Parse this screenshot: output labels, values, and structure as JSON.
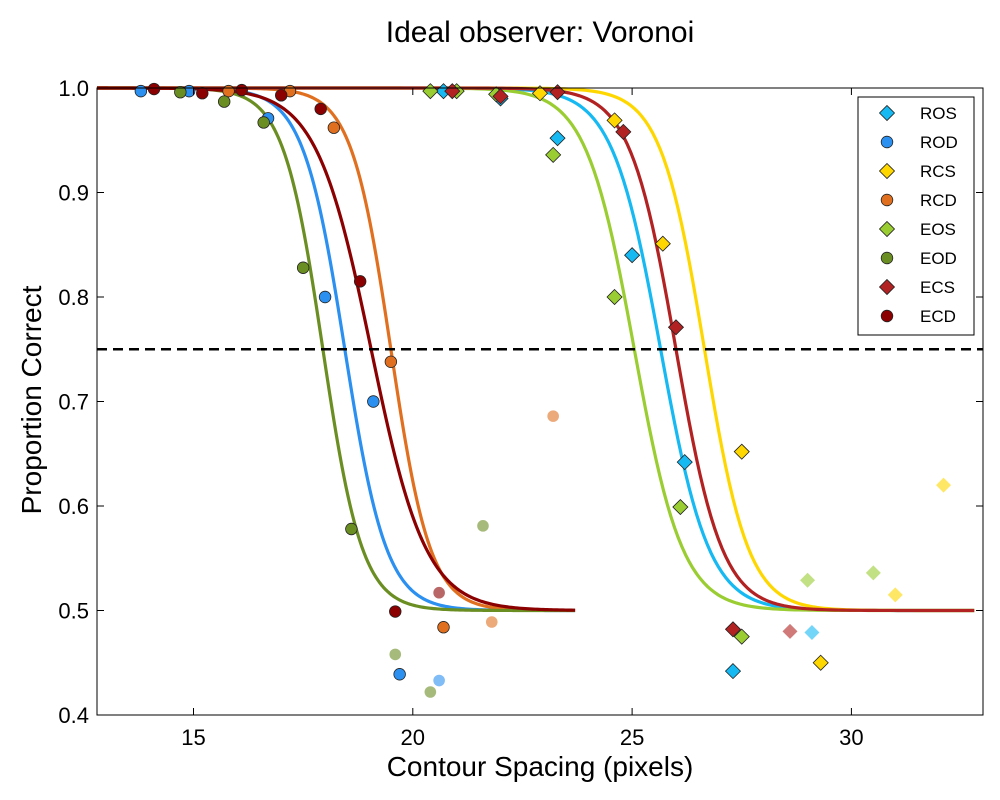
{
  "chart_data": {
    "type": "scatter",
    "title": "Ideal observer: Voronoi",
    "xlabel": "Contour Spacing (pixels)",
    "ylabel": "Proportion Correct",
    "xlim": [
      12.8,
      33.0
    ],
    "ylim": [
      0.4,
      1.0
    ],
    "xticks": [
      {
        "value": 15,
        "label": "15"
      },
      {
        "value": 20,
        "label": "20"
      },
      {
        "value": 25,
        "label": "25"
      },
      {
        "value": 30,
        "label": "30"
      }
    ],
    "yticks": [
      {
        "value": 0.4,
        "label": "0.4"
      },
      {
        "value": 0.5,
        "label": "0.5"
      },
      {
        "value": 0.6,
        "label": "0.6"
      },
      {
        "value": 0.7,
        "label": "0.7"
      },
      {
        "value": 0.8,
        "label": "0.8"
      },
      {
        "value": 0.9,
        "label": "0.9"
      },
      {
        "value": 1.0,
        "label": "1.0"
      }
    ],
    "reference_line": {
      "y": 0.75,
      "style": "dashed",
      "color": "#000000"
    },
    "grid": false,
    "legend_position": "top-right",
    "series": [
      {
        "name": "ROS",
        "marker": "diamond",
        "color": "#16b9f2",
        "fit": {
          "threshold": 25.65,
          "slope": 1.1,
          "x_range": [
            12.8,
            32.8
          ]
        },
        "points": [
          [
            20.7,
            0.997
          ],
          [
            22.0,
            0.99
          ],
          [
            23.3,
            0.952
          ],
          [
            25.0,
            0.84
          ],
          [
            26.2,
            0.642
          ],
          [
            27.3,
            0.442
          ]
        ],
        "faded_points": [
          [
            29.1,
            0.479
          ]
        ]
      },
      {
        "name": "ROD",
        "marker": "circle",
        "color": "#2b90f0",
        "fit": {
          "threshold": 18.45,
          "slope": 0.95,
          "x_range": [
            12.8,
            23.7
          ]
        },
        "points": [
          [
            13.8,
            0.997
          ],
          [
            14.9,
            0.997
          ],
          [
            16.7,
            0.971
          ],
          [
            18.0,
            0.8
          ],
          [
            19.1,
            0.7
          ],
          [
            19.7,
            0.439
          ]
        ],
        "faded_points": [
          [
            20.6,
            0.433
          ]
        ]
      },
      {
        "name": "RCS",
        "marker": "diamond",
        "color": "#ffd700",
        "fit": {
          "threshold": 26.65,
          "slope": 1.0,
          "x_range": [
            12.8,
            32.8
          ]
        },
        "points": [
          [
            22.9,
            0.995
          ],
          [
            24.6,
            0.969
          ],
          [
            25.7,
            0.851
          ],
          [
            27.5,
            0.652
          ],
          [
            29.3,
            0.45
          ]
        ],
        "faded_points": [
          [
            31.0,
            0.515
          ],
          [
            32.1,
            0.62
          ]
        ]
      },
      {
        "name": "RCD",
        "marker": "circle",
        "color": "#e07020",
        "fit": {
          "threshold": 19.5,
          "slope": 0.9,
          "x_range": [
            12.8,
            23.7
          ]
        },
        "points": [
          [
            15.8,
            0.997
          ],
          [
            17.2,
            0.997
          ],
          [
            18.2,
            0.962
          ],
          [
            19.5,
            0.738
          ],
          [
            20.7,
            0.484
          ]
        ],
        "faded_points": [
          [
            21.8,
            0.489
          ],
          [
            23.2,
            0.686
          ]
        ]
      },
      {
        "name": "EOS",
        "marker": "diamond",
        "color": "#9acd32",
        "fit": {
          "threshold": 25.05,
          "slope": 1.1,
          "x_range": [
            12.8,
            32.8
          ]
        },
        "points": [
          [
            20.4,
            0.997
          ],
          [
            21.0,
            0.997
          ],
          [
            21.9,
            0.994
          ],
          [
            23.2,
            0.936
          ],
          [
            24.6,
            0.8
          ],
          [
            26.1,
            0.599
          ],
          [
            27.5,
            0.475
          ]
        ],
        "faded_points": [
          [
            29.0,
            0.529
          ],
          [
            30.5,
            0.536
          ]
        ]
      },
      {
        "name": "EOD",
        "marker": "circle",
        "color": "#6b8e23",
        "fit": {
          "threshold": 17.95,
          "slope": 0.9,
          "x_range": [
            12.8,
            23.7
          ]
        },
        "points": [
          [
            14.7,
            0.996
          ],
          [
            15.7,
            0.987
          ],
          [
            16.6,
            0.967
          ],
          [
            17.5,
            0.828
          ],
          [
            18.6,
            0.578
          ]
        ],
        "faded_points": [
          [
            19.6,
            0.458
          ],
          [
            20.4,
            0.422
          ],
          [
            21.6,
            0.581
          ]
        ]
      },
      {
        "name": "ECS",
        "marker": "diamond",
        "color": "#b22222",
        "fit": {
          "threshold": 26.0,
          "slope": 1.05,
          "x_range": [
            12.8,
            32.8
          ]
        },
        "points": [
          [
            20.9,
            0.997
          ],
          [
            22.0,
            0.992
          ],
          [
            23.3,
            0.996
          ],
          [
            24.8,
            0.958
          ],
          [
            26.0,
            0.771
          ],
          [
            27.3,
            0.482
          ]
        ],
        "faded_points": [
          [
            28.6,
            0.48
          ]
        ]
      },
      {
        "name": "ECD",
        "marker": "circle",
        "color": "#8b0000",
        "fit": {
          "threshold": 19.05,
          "slope": 1.25,
          "x_range": [
            12.8,
            23.7
          ]
        },
        "points": [
          [
            14.1,
            0.999
          ],
          [
            15.2,
            0.995
          ],
          [
            16.1,
            0.998
          ],
          [
            17.0,
            0.993
          ],
          [
            17.9,
            0.98
          ],
          [
            18.8,
            0.815
          ],
          [
            19.6,
            0.499
          ]
        ],
        "faded_points": [
          [
            20.6,
            0.517
          ]
        ]
      }
    ]
  }
}
